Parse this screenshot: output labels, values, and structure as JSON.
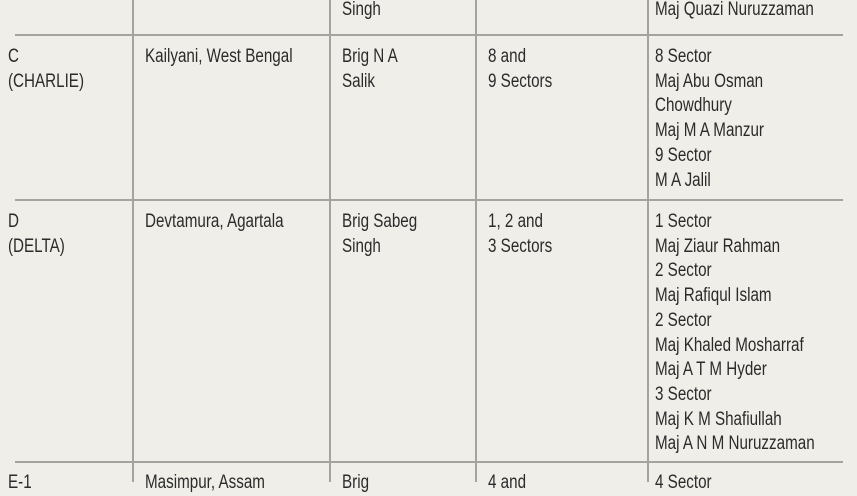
{
  "colors": {
    "background": "#efeee8",
    "rule": "#a3a3a0",
    "text": "#2b2b2b"
  },
  "rows": [
    {
      "cells": [
        "",
        "",
        "Singh",
        "",
        "Maj Quazi Nuruzzaman"
      ]
    },
    {
      "cells": [
        "C\n(CHARLIE)",
        "Kailyani, West Bengal",
        "Brig N A\nSalik",
        "8 and\n9 Sectors",
        "8 Sector\nMaj Abu Osman\nChowdhury\nMaj M A Manzur\n9 Sector\nM A Jalil"
      ]
    },
    {
      "cells": [
        "D\n(DELTA)",
        "Devtamura, Agartala",
        "Brig Sabeg\nSingh",
        "1, 2 and\n3 Sectors",
        "1 Sector\n Maj Ziaur Rahman\n2 Sector\nMaj Rafiqul Islam\n2 Sector\nMaj Khaled Mosharraf\nMaj A T M Hyder\n3 Sector\nMaj K M Shafiullah\nMaj A N M Nuruzzaman"
      ]
    },
    {
      "cells": [
        "E-1",
        "Masimpur, Assam",
        "Brig",
        "4 and",
        "4 Sector"
      ]
    }
  ]
}
